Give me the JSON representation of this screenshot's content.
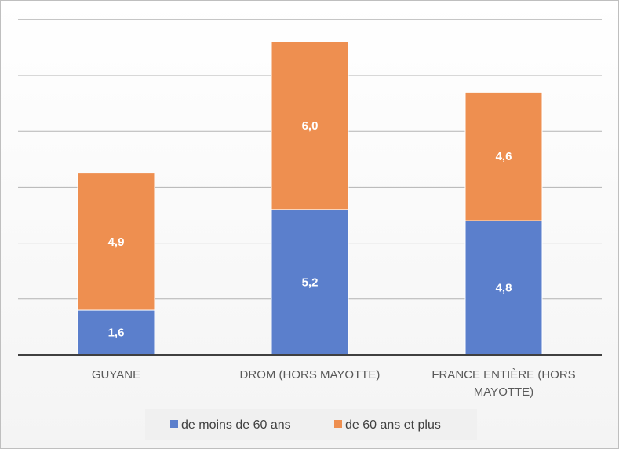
{
  "chart_data": {
    "type": "bar",
    "stacked": true,
    "categories": [
      [
        "GUYANE"
      ],
      [
        "DROM (HORS MAYOTTE)"
      ],
      [
        "FRANCE ENTIÈRE (HORS",
        "MAYOTTE)"
      ]
    ],
    "series": [
      {
        "name": "de moins de 60 ans",
        "values": [
          1.6,
          5.2,
          4.8
        ],
        "labels": [
          "1,6",
          "5,2",
          "4,8"
        ],
        "color": "#5b7fcc"
      },
      {
        "name": "de 60 ans et plus",
        "values": [
          4.9,
          6.0,
          4.6
        ],
        "labels": [
          "4,9",
          "6,0",
          "4,6"
        ],
        "color": "#ee8f50"
      }
    ],
    "ylim": [
      0,
      12
    ],
    "y_gridline_step": 2,
    "y_tick_labels_shown": false,
    "grid": true,
    "legend": "bottom",
    "legend_background": "#f0f0f0",
    "axis_color": "#404040",
    "grid_color": "#b3b3b3"
  }
}
